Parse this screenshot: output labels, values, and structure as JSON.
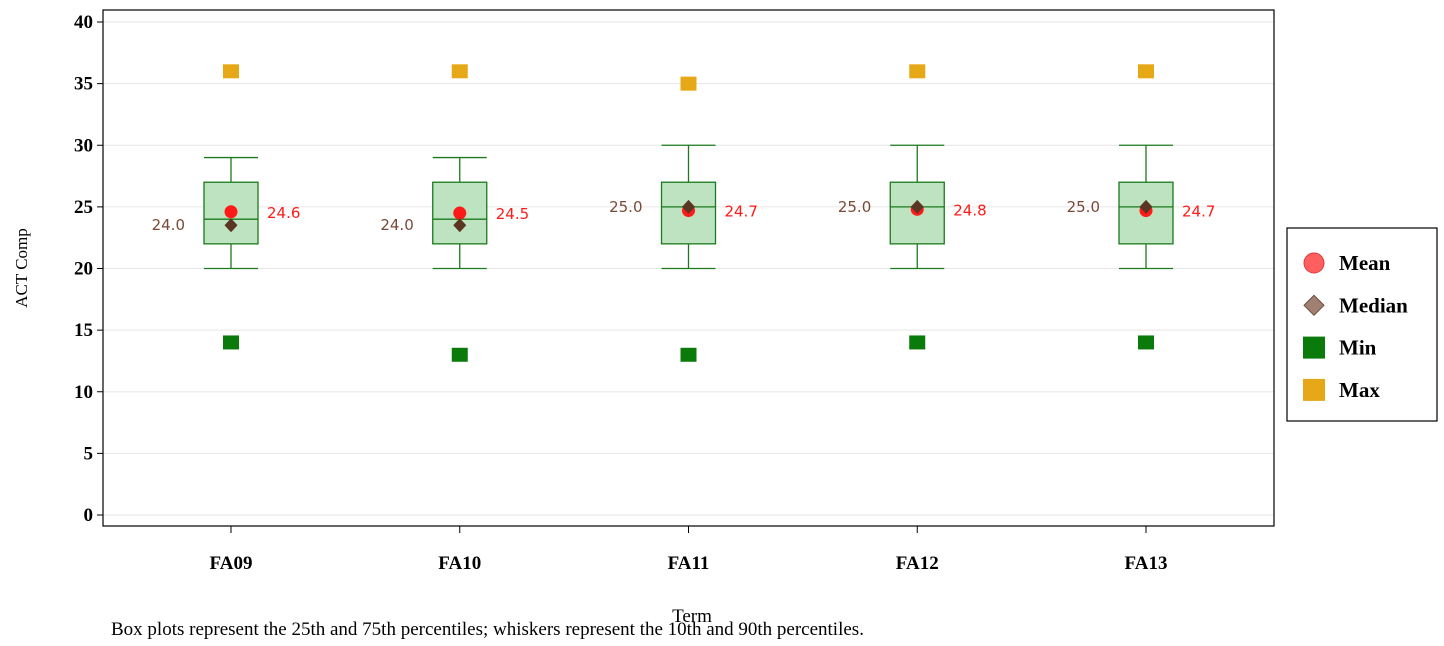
{
  "chart_data": {
    "type": "box",
    "xlabel": "Term",
    "ylabel": "ACT Comp",
    "categories": [
      "FA09",
      "FA10",
      "FA11",
      "FA12",
      "FA13"
    ],
    "ylim": [
      0,
      40
    ],
    "yticks": [
      0,
      5,
      10,
      15,
      20,
      25,
      30,
      35,
      40
    ],
    "grid": true,
    "legend_position": "right",
    "boxes": [
      {
        "term": "FA09",
        "p10": 20,
        "q1": 22,
        "median": 24,
        "q3": 27,
        "p90": 29,
        "mean": 24.6,
        "min": 14,
        "max": 36,
        "median_label": "24.0",
        "mean_label": "24.6"
      },
      {
        "term": "FA10",
        "p10": 20,
        "q1": 22,
        "median": 24,
        "q3": 27,
        "p90": 29,
        "mean": 24.5,
        "min": 13,
        "max": 36,
        "median_label": "24.0",
        "mean_label": "24.5"
      },
      {
        "term": "FA11",
        "p10": 20,
        "q1": 22,
        "median": 25,
        "q3": 27,
        "p90": 30,
        "mean": 24.7,
        "min": 13,
        "max": 35,
        "median_label": "25.0",
        "mean_label": "24.7"
      },
      {
        "term": "FA12",
        "p10": 20,
        "q1": 22,
        "median": 25,
        "q3": 27,
        "p90": 30,
        "mean": 24.8,
        "min": 14,
        "max": 36,
        "median_label": "25.0",
        "mean_label": "24.8"
      },
      {
        "term": "FA13",
        "p10": 20,
        "q1": 22,
        "median": 25,
        "q3": 27,
        "p90": 30,
        "mean": 24.7,
        "min": 14,
        "max": 36,
        "median_label": "25.0",
        "mean_label": "24.7"
      }
    ],
    "legend": [
      {
        "name": "Mean",
        "marker": "circle",
        "color": "#ff5f5f"
      },
      {
        "name": "Median",
        "marker": "diamond",
        "color": "#a08070"
      },
      {
        "name": "Min",
        "marker": "square",
        "color": "#0a7a0a"
      },
      {
        "name": "Max",
        "marker": "square",
        "color": "#e6a817"
      }
    ],
    "colors": {
      "box_fill": "#bde3c0",
      "box_stroke": "#1b7a1b",
      "mean": "#ff1a1a",
      "median": "#5a3522",
      "median_label": "#7a4a38",
      "mean_label": "#ff1a1a",
      "min": "#0a7a0a",
      "max": "#e6a817"
    }
  },
  "footnote": "Box plots represent the 25th and 75th percentiles; whiskers represent the 10th and 90th percentiles."
}
